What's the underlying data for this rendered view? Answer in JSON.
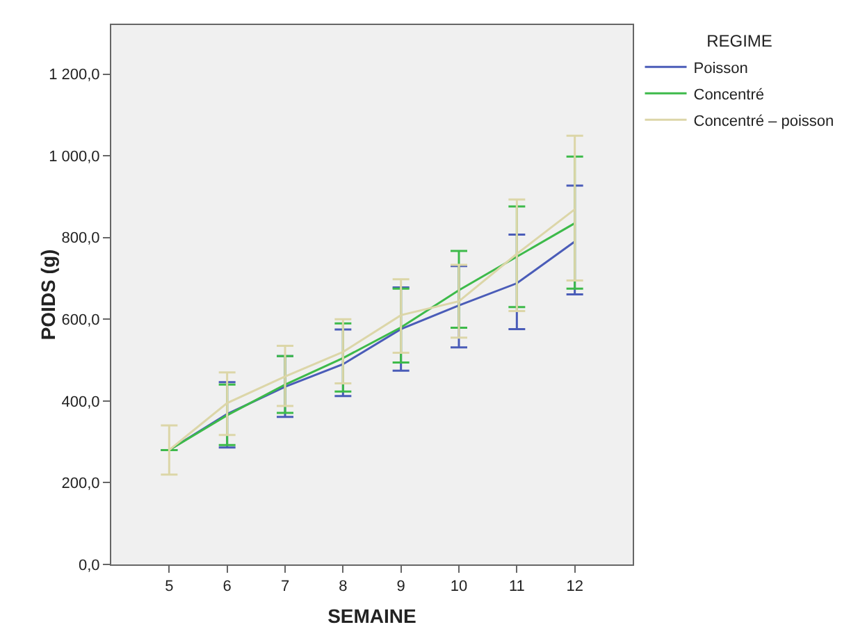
{
  "chart_data": {
    "type": "line",
    "xlabel": "SEMAINE",
    "ylabel": "POIDS (g)",
    "legend_title": "REGIME",
    "legend": "top right",
    "x": [
      5,
      6,
      7,
      8,
      9,
      10,
      11,
      12
    ],
    "xlim": [
      4,
      13
    ],
    "xticks": [
      5,
      6,
      7,
      8,
      9,
      10,
      11,
      12
    ],
    "ylim": [
      0,
      1320
    ],
    "yticks": [
      {
        "value": 0,
        "label": "0,0"
      },
      {
        "value": 200,
        "label": "200,0"
      },
      {
        "value": 400,
        "label": "400,0"
      },
      {
        "value": 600,
        "label": "600,0"
      },
      {
        "value": 800,
        "label": "800,0"
      },
      {
        "value": 1000,
        "label": "1 000,0"
      },
      {
        "value": 1200,
        "label": "1 200,0"
      }
    ],
    "grid": false,
    "marker": "none",
    "line_style": "solid",
    "series": [
      {
        "name": "Poisson",
        "color": "#4a5cb8",
        "values": [
          280,
          368,
          435,
          490,
          576,
          634,
          688,
          790
        ],
        "errors": [
          null,
          [
            286,
            446
          ],
          [
            361,
            510
          ],
          [
            412,
            575
          ],
          [
            474,
            678
          ],
          [
            531,
            730
          ],
          [
            576,
            807
          ],
          [
            661,
            927
          ]
        ]
      },
      {
        "name": "Concentré",
        "color": "#3dba4a",
        "values": [
          280,
          365,
          440,
          505,
          580,
          671,
          753,
          835
        ],
        "errors": [
          null,
          [
            292,
            440
          ],
          [
            371,
            510
          ],
          [
            423,
            590
          ],
          [
            494,
            675
          ],
          [
            579,
            767
          ],
          [
            630,
            876
          ],
          [
            675,
            998
          ]
        ]
      },
      {
        "name": "Concentré – poisson",
        "color": "#dcd6a8",
        "values": [
          280,
          395,
          460,
          520,
          610,
          644,
          760,
          869
        ],
        "errors": [
          [
            220,
            340
          ],
          [
            317,
            470
          ],
          [
            388,
            535
          ],
          [
            443,
            600
          ],
          [
            518,
            698
          ],
          [
            555,
            733
          ],
          [
            620,
            893
          ],
          [
            695,
            1049
          ]
        ]
      }
    ]
  }
}
